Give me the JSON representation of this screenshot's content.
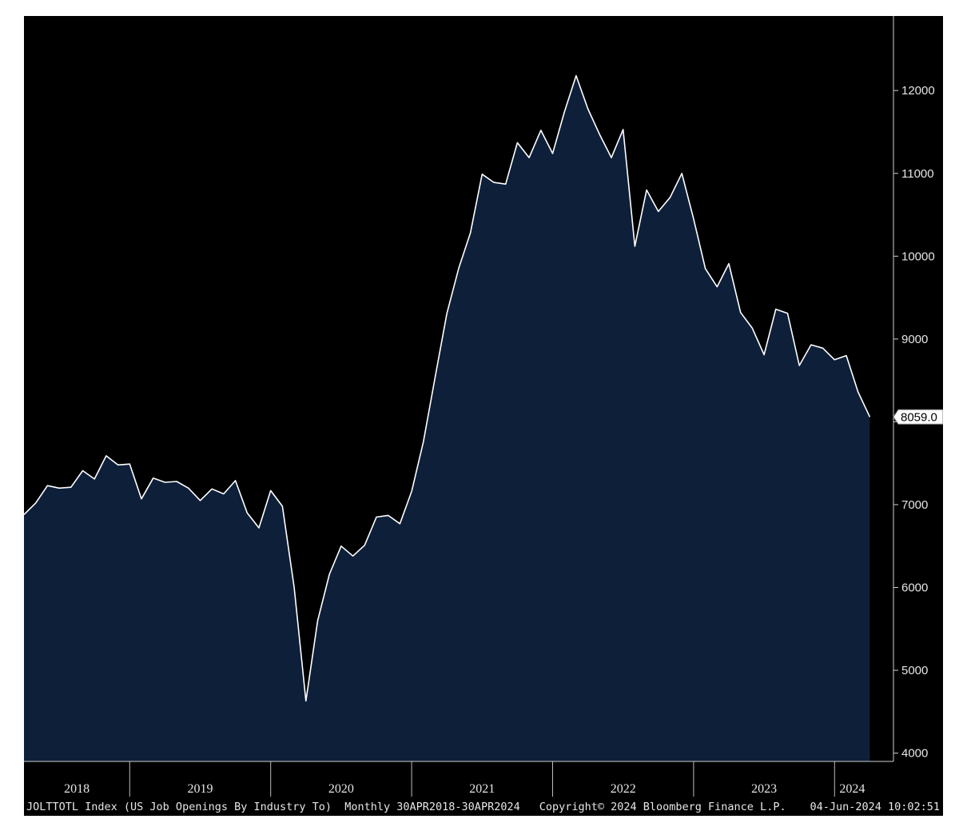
{
  "chart_data": {
    "type": "area",
    "title": "",
    "xlabel": "",
    "ylabel": "",
    "ylim": [
      3900,
      12900
    ],
    "y_ticks": [
      4000,
      5000,
      6000,
      7000,
      8000,
      9000,
      10000,
      11000,
      12000
    ],
    "y_tick_labels": [
      "4000",
      "5000",
      "6000",
      "7000",
      "9000",
      "10000",
      "11000",
      "12000"
    ],
    "x_period_labels": [
      "2018",
      "2019",
      "2020",
      "2021",
      "2022",
      "2023",
      "2024"
    ],
    "start_month": "2018-04",
    "end_month": "2024-04",
    "series": [
      {
        "values": [
          6880,
          7020,
          7230,
          7200,
          7210,
          7410,
          7310,
          7590,
          7480,
          7490,
          7070,
          7320,
          7270,
          7280,
          7200,
          7050,
          7190,
          7130,
          7290,
          6900,
          6720,
          7170,
          6980,
          6000,
          4630,
          5600,
          6160,
          6500,
          6380,
          6510,
          6850,
          6870,
          6770,
          7160,
          7760,
          8540,
          9310,
          9850,
          10280,
          10990,
          10890,
          10870,
          11370,
          11190,
          11520,
          11240,
          11740,
          12180,
          11780,
          11470,
          11190,
          11530,
          10120,
          10800,
          10540,
          10710,
          11000,
          10450,
          9850,
          9630,
          9910,
          9320,
          9130,
          8810,
          9360,
          9310,
          8680,
          8930,
          8890,
          8750,
          8800,
          8360,
          8059
        ]
      }
    ],
    "last_value_label": "8059.0",
    "colors": {
      "background": "#000000",
      "fill": "#0e1f3a",
      "line": "#ffffff",
      "text": "#e6e6e6",
      "marker_bg": "#ffffff",
      "marker_text": "#000000"
    },
    "grid": false
  },
  "footer": {
    "index_info": "JOLTTOTL Index (US Job Openings By Industry To)  Monthly 30APR2018-30APR2024",
    "copyright": "Copyright© 2024 Bloomberg Finance L.P.",
    "timestamp": "04-Jun-2024 10:02:51"
  }
}
